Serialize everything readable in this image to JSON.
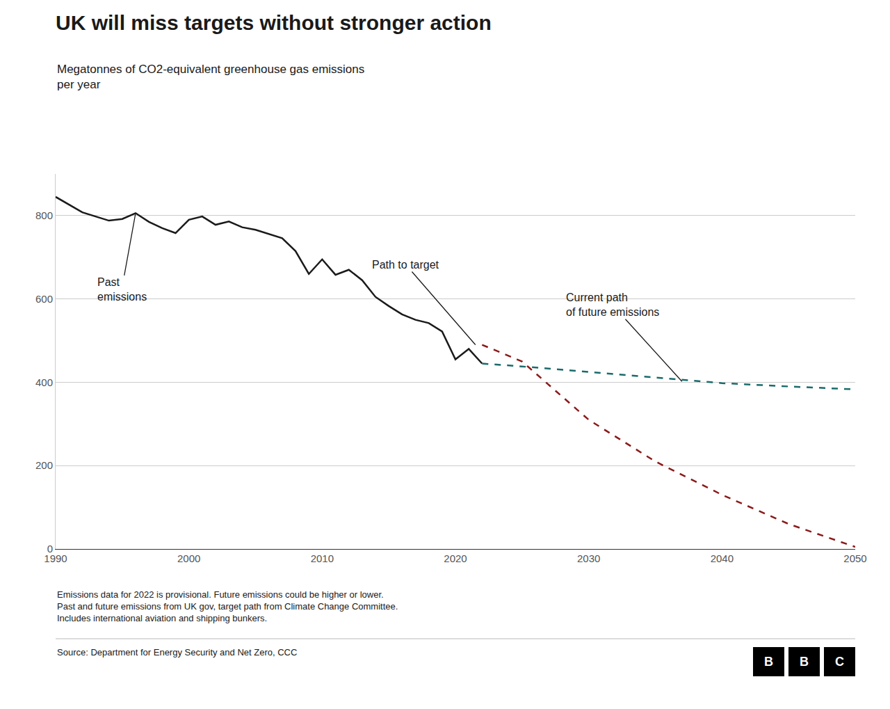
{
  "chart_data": {
    "type": "line",
    "title": "UK will miss targets without stronger action",
    "subtitle": "Megatonnes of CO2-equivalent greenhouse gas emissions\nper year",
    "footnote": "Emissions data for 2022 is provisional. Future emissions could be higher or lower.\nPast and future emissions from UK gov, target path from Climate Change Committee.\nIncludes international aviation and shipping bunkers.",
    "source": "Source: Department for Energy Security and Net Zero, CCC",
    "logo": "BBC",
    "series": [
      {
        "x": [
          1990,
          1991,
          1992,
          1993,
          1994,
          1995,
          1996,
          1997,
          1998,
          1999,
          2000,
          2001,
          2002,
          2003,
          2004,
          2005,
          2006,
          2007,
          2008,
          2009,
          2010,
          2011,
          2012,
          2013,
          2014,
          2015,
          2016,
          2017,
          2018,
          2019,
          2020,
          2021,
          2022
        ],
        "values": [
          845,
          826,
          808,
          798,
          788,
          792,
          806,
          785,
          770,
          758,
          790,
          798,
          778,
          786,
          772,
          766,
          756,
          746,
          715,
          660,
          695,
          658,
          670,
          645,
          605,
          583,
          563,
          550,
          542,
          522,
          455,
          480,
          445
        ],
        "color": "#1a1a1a",
        "line_style": "solid"
      },
      {
        "x": [
          2022,
          2025,
          2030,
          2035,
          2040,
          2045,
          2050
        ],
        "values": [
          490,
          450,
          310,
          210,
          130,
          60,
          5
        ],
        "color": "#8b1a1a",
        "line_style": "dashed"
      },
      {
        "x": [
          2022,
          2025,
          2030,
          2035,
          2040,
          2045,
          2050
        ],
        "values": [
          445,
          438,
          425,
          412,
          398,
          390,
          383
        ],
        "color": "#1a6b6b",
        "line_style": "dashed"
      }
    ],
    "annotations": [
      {
        "text": "Past\nemissions",
        "x": 1996,
        "y": 806
      },
      {
        "text": "Path to target",
        "x": 2021.5,
        "y": 490
      },
      {
        "text": "Current path\nof future emissions",
        "x": 2037,
        "y": 402
      }
    ],
    "xlim": [
      1990,
      2050
    ],
    "ylim": [
      0,
      900
    ],
    "xticks": [
      1990,
      2000,
      2010,
      2020,
      2030,
      2040,
      2050
    ],
    "yticks": [
      0,
      200,
      400,
      600,
      800
    ],
    "grid": "y"
  }
}
